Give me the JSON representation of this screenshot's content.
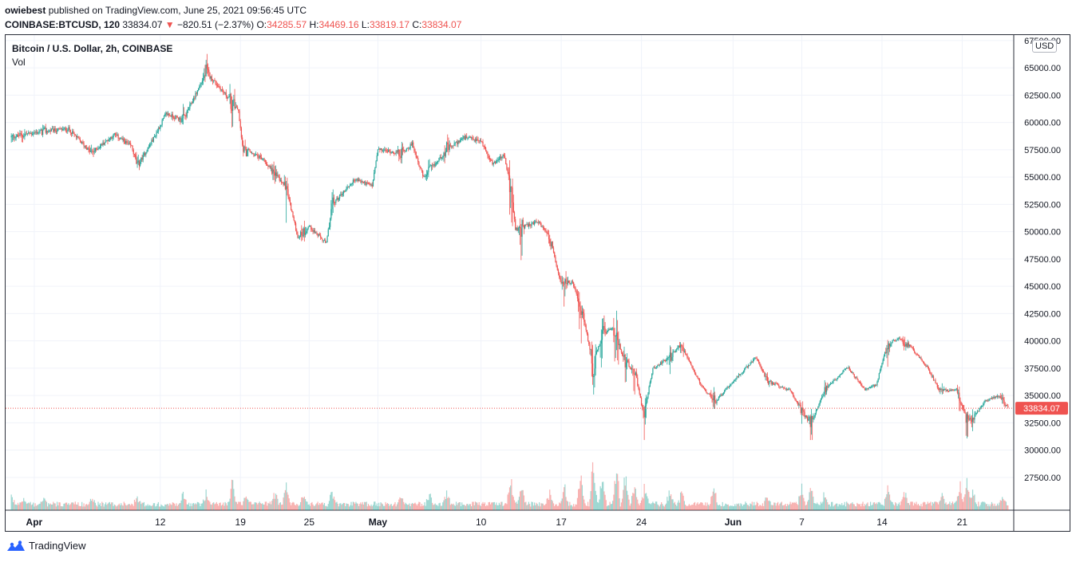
{
  "header": {
    "user": "owiebest",
    "published_text": "published on TradingView.com, June 25, 2021 09:56:45 UTC",
    "symbol": "COINBASE:BTCUSD, 120",
    "last_price": "33834.07",
    "change": "−820.51 (−2.37%)",
    "o_label": "O:",
    "o_value": "34285.57",
    "h_label": "H:",
    "h_value": "34469.16",
    "l_label": "L:",
    "l_value": "33819.17",
    "c_label": "C:",
    "c_value": "33834.07",
    "down_arrow": "▼"
  },
  "legend": {
    "title": "Bitcoin / U.S. Dollar, 2h, COINBASE",
    "volume_label": "Vol"
  },
  "axis": {
    "currency": "USD",
    "price_label": "33834.07"
  },
  "footer": {
    "brand": "TradingView"
  },
  "colors": {
    "up": "#26a69a",
    "down": "#ef5350",
    "grid": "#f0f3fa",
    "price_line": "#ef5350"
  },
  "chart_data": {
    "type": "candlestick",
    "title": "Bitcoin / U.S. Dollar, 2h, COINBASE",
    "ylim": [
      24500,
      68000
    ],
    "y_ticks": [
      27500,
      30000,
      32500,
      35000,
      37500,
      40000,
      42500,
      45000,
      47500,
      50000,
      52500,
      55000,
      57500,
      60000,
      62500,
      65000,
      67500
    ],
    "x_ticks": [
      {
        "label": "Apr",
        "bold": true,
        "day": 1
      },
      {
        "label": "12",
        "bold": false,
        "day": 12
      },
      {
        "label": "19",
        "bold": false,
        "day": 19
      },
      {
        "label": "25",
        "bold": false,
        "day": 25
      },
      {
        "label": "May",
        "bold": true,
        "day": 31
      },
      {
        "label": "10",
        "bold": false,
        "day": 40
      },
      {
        "label": "17",
        "bold": false,
        "day": 47
      },
      {
        "label": "24",
        "bold": false,
        "day": 54
      },
      {
        "label": "Jun",
        "bold": true,
        "day": 62
      },
      {
        "label": "7",
        "bold": false,
        "day": 68
      },
      {
        "label": "14",
        "bold": false,
        "day": 75
      },
      {
        "label": "21",
        "bold": false,
        "day": 82
      }
    ],
    "day_range": [
      -1.5,
      86.5
    ],
    "last_price": 33834.07,
    "price_path": [
      [
        -1.5,
        58500
      ],
      [
        0,
        58900
      ],
      [
        2,
        59200
      ],
      [
        4,
        59400
      ],
      [
        6,
        57200
      ],
      [
        8,
        58900
      ],
      [
        9.5,
        57800
      ],
      [
        10,
        56000
      ],
      [
        11.5,
        58700
      ],
      [
        12.5,
        60800
      ],
      [
        14,
        60200
      ],
      [
        15.2,
        62800
      ],
      [
        16,
        64600
      ],
      [
        17.5,
        62800
      ],
      [
        18.8,
        61200
      ],
      [
        19.2,
        57600
      ],
      [
        21,
        56600
      ],
      [
        23,
        54000
      ],
      [
        24,
        49500
      ],
      [
        25,
        50500
      ],
      [
        26.5,
        48900
      ],
      [
        27,
        52500
      ],
      [
        29,
        54800
      ],
      [
        30.5,
        54200
      ],
      [
        31,
        57500
      ],
      [
        33,
        57200
      ],
      [
        34,
        58000
      ],
      [
        35,
        54900
      ],
      [
        37,
        57500
      ],
      [
        38.5,
        58600
      ],
      [
        40,
        58300
      ],
      [
        41,
        56200
      ],
      [
        42,
        57000
      ],
      [
        42.6,
        54000
      ],
      [
        43,
        50200
      ],
      [
        45,
        50900
      ],
      [
        46,
        49500
      ],
      [
        47,
        45200
      ],
      [
        48,
        45400
      ],
      [
        49,
        42000
      ],
      [
        49.8,
        37500
      ],
      [
        50.5,
        40500
      ],
      [
        51.5,
        41300
      ],
      [
        52.5,
        38200
      ],
      [
        53.5,
        37000
      ],
      [
        54.2,
        33200
      ],
      [
        55,
        37500
      ],
      [
        56.5,
        38500
      ],
      [
        57.5,
        39700
      ],
      [
        58.5,
        37300
      ],
      [
        59.5,
        35500
      ],
      [
        60.5,
        34500
      ],
      [
        62,
        36300
      ],
      [
        64,
        38500
      ],
      [
        65,
        36300
      ],
      [
        67,
        35500
      ],
      [
        68,
        33500
      ],
      [
        68.8,
        32500
      ],
      [
        70,
        35500
      ],
      [
        72,
        37600
      ],
      [
        73.5,
        35500
      ],
      [
        74.5,
        36000
      ],
      [
        75.5,
        39800
      ],
      [
        76.5,
        40200
      ],
      [
        77.5,
        39500
      ],
      [
        79,
        37500
      ],
      [
        80,
        35500
      ],
      [
        81.5,
        35500
      ],
      [
        82.3,
        32900
      ],
      [
        83,
        33000
      ],
      [
        84,
        34500
      ],
      [
        85.2,
        35000
      ],
      [
        86,
        33834
      ]
    ],
    "volume_spikes": [
      [
        -1,
        1.0
      ],
      [
        0,
        1.0
      ],
      [
        1.8,
        0.9
      ],
      [
        6,
        0.8
      ],
      [
        10,
        1.0
      ],
      [
        14,
        1.4
      ],
      [
        16,
        1.9
      ],
      [
        18.3,
        3.4
      ],
      [
        19.5,
        1.4
      ],
      [
        22,
        1.8
      ],
      [
        23,
        2.5
      ],
      [
        24.5,
        1.9
      ],
      [
        27,
        2.0
      ],
      [
        33,
        1.2
      ],
      [
        35.5,
        1.6
      ],
      [
        37,
        1.8
      ],
      [
        42.6,
        3.8
      ],
      [
        43.5,
        2.9
      ],
      [
        46,
        1.8
      ],
      [
        47.3,
        3.0
      ],
      [
        48.7,
        4.6
      ],
      [
        49.8,
        6.9
      ],
      [
        50.6,
        4.2
      ],
      [
        51.8,
        6.4
      ],
      [
        52.6,
        4.0
      ],
      [
        53.4,
        2.8
      ],
      [
        54.3,
        3.2
      ],
      [
        56.5,
        2.3
      ],
      [
        57.5,
        1.8
      ],
      [
        60.3,
        2.5
      ],
      [
        65,
        1.4
      ],
      [
        68,
        2.4
      ],
      [
        68.8,
        3.1
      ],
      [
        70,
        2.0
      ],
      [
        75.5,
        2.3
      ],
      [
        77,
        1.8
      ],
      [
        80.2,
        1.7
      ],
      [
        81.8,
        2.8
      ],
      [
        82.4,
        3.5
      ],
      [
        82.9,
        2.5
      ],
      [
        85.5,
        1.2
      ]
    ]
  }
}
